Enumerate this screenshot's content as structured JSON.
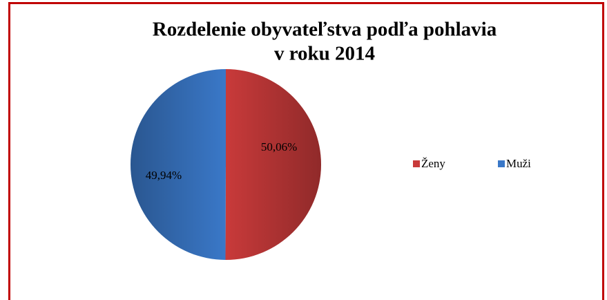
{
  "chart_data": {
    "type": "pie",
    "title": [
      "Rozdelenie obyvateľstva podľa pohlavia",
      "v roku 2014"
    ],
    "categories": [
      "Ženy",
      "Muži"
    ],
    "values": [
      50.06,
      49.94
    ],
    "value_labels": [
      "50,06%",
      "49,94%"
    ],
    "colors": [
      "#c83a3a",
      "#3a78c8"
    ]
  }
}
